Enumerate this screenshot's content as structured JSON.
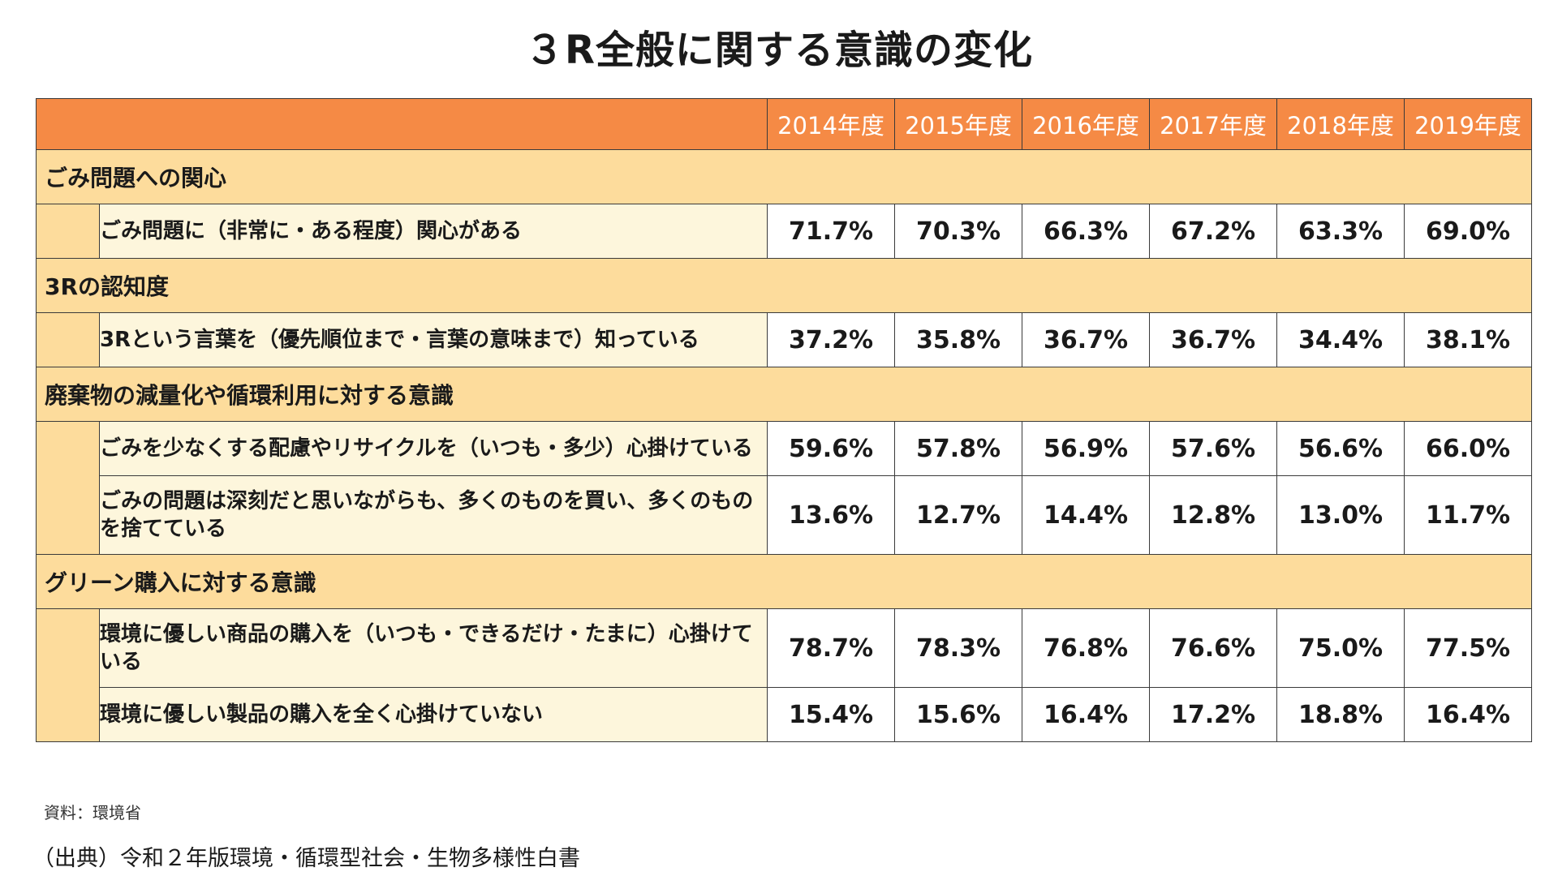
{
  "title": "３R全般に関する意識の変化",
  "source": "資料：環境省",
  "citation": "（出典）令和２年版環境・循環型社会・生物多様性白書",
  "chart_data": {
    "type": "table",
    "columns": [
      "2014年度",
      "2015年度",
      "2016年度",
      "2017年度",
      "2018年度",
      "2019年度"
    ],
    "groups": [
      {
        "category": "ごみ問題への関心",
        "rows": [
          {
            "label": "ごみ問題に（非常に・ある程度）関心がある",
            "values": [
              "71.7%",
              "70.3%",
              "66.3%",
              "67.2%",
              "63.3%",
              "69.0%"
            ]
          }
        ]
      },
      {
        "category": "3Rの認知度",
        "rows": [
          {
            "label": "3Rという言葉を（優先順位まで・言葉の意味まで）知っている",
            "values": [
              "37.2%",
              "35.8%",
              "36.7%",
              "36.7%",
              "34.4%",
              "38.1%"
            ]
          }
        ]
      },
      {
        "category": "廃棄物の減量化や循環利用に対する意識",
        "rows": [
          {
            "label": "ごみを少なくする配慮やリサイクルを（いつも・多少）心掛けている",
            "values": [
              "59.6%",
              "57.8%",
              "56.9%",
              "57.6%",
              "56.6%",
              "66.0%"
            ]
          },
          {
            "label": "ごみの問題は深刻だと思いながらも、多くのものを買い、多くのものを捨てている",
            "values": [
              "13.6%",
              "12.7%",
              "14.4%",
              "12.8%",
              "13.0%",
              "11.7%"
            ]
          }
        ]
      },
      {
        "category": "グリーン購入に対する意識",
        "rows": [
          {
            "label": "環境に優しい商品の購入を（いつも・できるだけ・たまに）心掛けている",
            "values": [
              "78.7%",
              "78.3%",
              "76.8%",
              "76.6%",
              "75.0%",
              "77.5%"
            ]
          },
          {
            "label": "環境に優しい製品の購入を全く心掛けていない",
            "values": [
              "15.4%",
              "15.6%",
              "16.4%",
              "17.2%",
              "18.8%",
              "16.4%"
            ]
          }
        ]
      }
    ]
  }
}
